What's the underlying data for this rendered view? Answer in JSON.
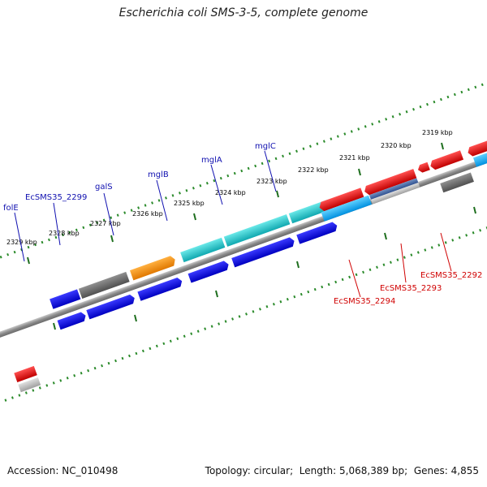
{
  "title": "Escherichia coli SMS-3-5, complete genome",
  "footer": {
    "accession_label": "Accession:",
    "accession": "NC_010498",
    "topology_label": "Topology:",
    "topology": "circular",
    "length_label": "Length:",
    "length": "5,068,389 bp",
    "genes_label": "Genes:",
    "genes": "4,855"
  },
  "colors": {
    "forward_label": "#1010b0",
    "reverse_label": "#d00000",
    "scale_dots": "#2a8a2a",
    "backbone": "#888888"
  },
  "scale": {
    "ticks": [
      "2319 kbp",
      "2320 kbp",
      "2321 kbp",
      "2322 kbp",
      "2323 kbp",
      "2324 kbp",
      "2325 kbp",
      "2326 kbp",
      "2327 kbp",
      "2328 kbp",
      "2329 kbp"
    ]
  },
  "gene_labels": {
    "forward": [
      "folE",
      "EcSMS35_2299",
      "galS",
      "mglB",
      "mglA",
      "mglC"
    ],
    "reverse": [
      "EcSMS35_2292",
      "EcSMS35_2293",
      "EcSMS35_2294"
    ]
  }
}
